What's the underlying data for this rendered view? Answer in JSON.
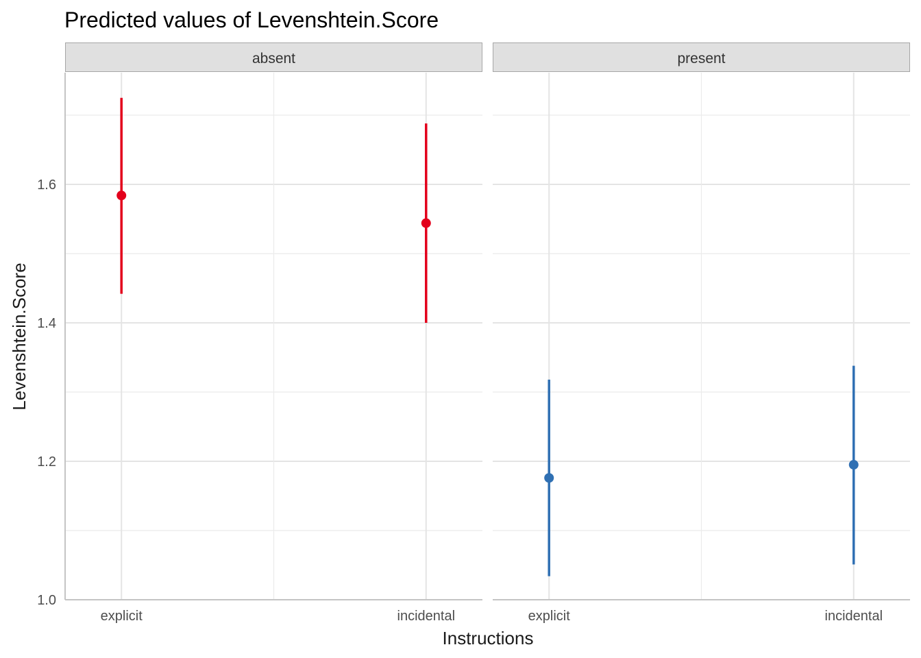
{
  "chart_data": {
    "type": "scatter",
    "title": "Predicted values of Levenshtein.Score",
    "xlabel": "Instructions",
    "ylabel": "Levenshtein.Score",
    "ylim": [
      1.0,
      1.76
    ],
    "y_ticks": [
      "1.0",
      "1.2",
      "1.4",
      "1.6"
    ],
    "y_tick_values": [
      1.0,
      1.2,
      1.4,
      1.6
    ],
    "grid": true,
    "categories": [
      "explicit",
      "incidental"
    ],
    "panels": [
      {
        "name": "absent",
        "color": "#e3001b",
        "points": [
          {
            "x": "explicit",
            "y": 1.584,
            "low": 1.442,
            "high": 1.725
          },
          {
            "x": "incidental",
            "y": 1.544,
            "low": 1.4,
            "high": 1.688
          }
        ]
      },
      {
        "name": "present",
        "color": "#3070b3",
        "points": [
          {
            "x": "explicit",
            "y": 1.176,
            "low": 1.034,
            "high": 1.318
          },
          {
            "x": "incidental",
            "y": 1.195,
            "low": 1.051,
            "high": 1.338
          }
        ]
      }
    ]
  }
}
